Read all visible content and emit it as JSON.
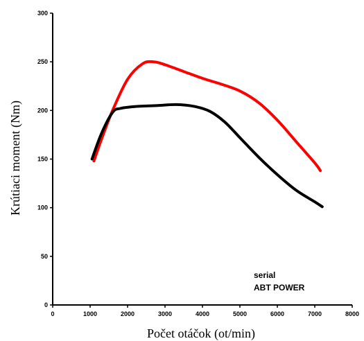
{
  "chart_data": {
    "type": "line",
    "title": "",
    "xlabel": "Počet otáčok (ot/min)",
    "ylabel": "Krútiaci moment (Nm)",
    "xlim": [
      0,
      8000
    ],
    "ylim": [
      0,
      300
    ],
    "xticks": [
      0,
      1000,
      2000,
      3000,
      4000,
      5000,
      6000,
      7000,
      8000
    ],
    "yticks": [
      0,
      50,
      100,
      150,
      200,
      250,
      300
    ],
    "grid": false,
    "legend_position": "bottom-right",
    "legend_entries": [
      "serial",
      "ABT POWER"
    ],
    "series": [
      {
        "color": "#ff0000",
        "x": [
          1100,
          1300,
          1600,
          2000,
          2400,
          2700,
          3000,
          3500,
          4000,
          4500,
          5000,
          5500,
          6000,
          6500,
          7000,
          7150
        ],
        "y": [
          148,
          170,
          200,
          232,
          248,
          250,
          247,
          240,
          233,
          227,
          220,
          208,
          190,
          168,
          146,
          138
        ]
      },
      {
        "color": "#000000",
        "x": [
          1050,
          1300,
          1600,
          1800,
          2200,
          2800,
          3300,
          3800,
          4200,
          4600,
          5000,
          5500,
          6000,
          6500,
          7000,
          7200
        ],
        "y": [
          150,
          176,
          198,
          202,
          204,
          205,
          206,
          204,
          199,
          188,
          172,
          152,
          134,
          118,
          106,
          101
        ]
      }
    ]
  }
}
